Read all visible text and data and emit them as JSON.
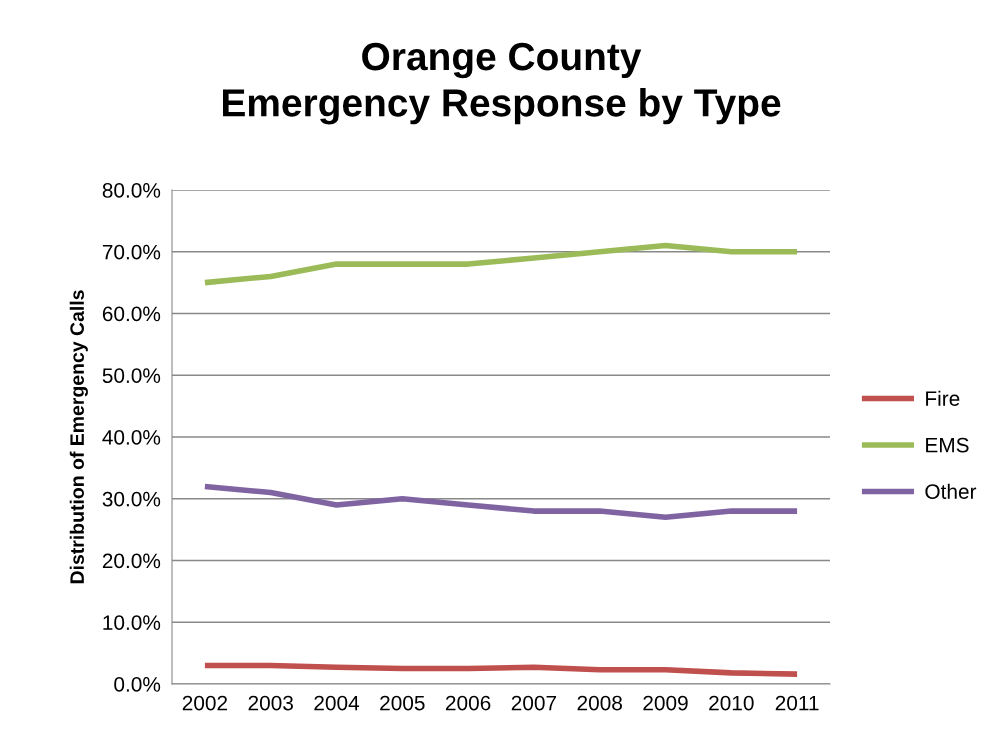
{
  "chart_data": {
    "type": "line",
    "title": "Orange County\nEmergency Response by Type",
    "ylabel": "Distribution of Emergency Calls",
    "categories": [
      "2002",
      "2003",
      "2004",
      "2005",
      "2006",
      "2007",
      "2008",
      "2009",
      "2010",
      "2011"
    ],
    "series": [
      {
        "name": "Fire",
        "color": "#c0504d",
        "values": [
          3.0,
          3.0,
          2.7,
          2.5,
          2.5,
          2.7,
          2.3,
          2.3,
          1.8,
          1.6
        ]
      },
      {
        "name": "EMS",
        "color": "#9bbb59",
        "values": [
          65,
          66,
          68,
          68,
          68,
          69,
          70,
          71,
          70,
          70
        ]
      },
      {
        "name": "Other",
        "color": "#8064a2",
        "values": [
          32,
          31,
          29,
          30,
          29,
          28,
          28,
          27,
          28,
          28
        ]
      }
    ],
    "ylim": [
      0,
      80
    ],
    "yticks": [
      {
        "value": 0,
        "label": "0.0%"
      },
      {
        "value": 10,
        "label": "10.0%"
      },
      {
        "value": 20,
        "label": "20.0%"
      },
      {
        "value": 30,
        "label": "30.0%"
      },
      {
        "value": 40,
        "label": "40.0%"
      },
      {
        "value": 50,
        "label": "50.0%"
      },
      {
        "value": 60,
        "label": "60.0%"
      },
      {
        "value": 70,
        "label": "70.0%"
      },
      {
        "value": 80,
        "label": "80.0%"
      }
    ],
    "grid": "y",
    "legend": "right",
    "marker": "none",
    "line_style": "solid"
  }
}
